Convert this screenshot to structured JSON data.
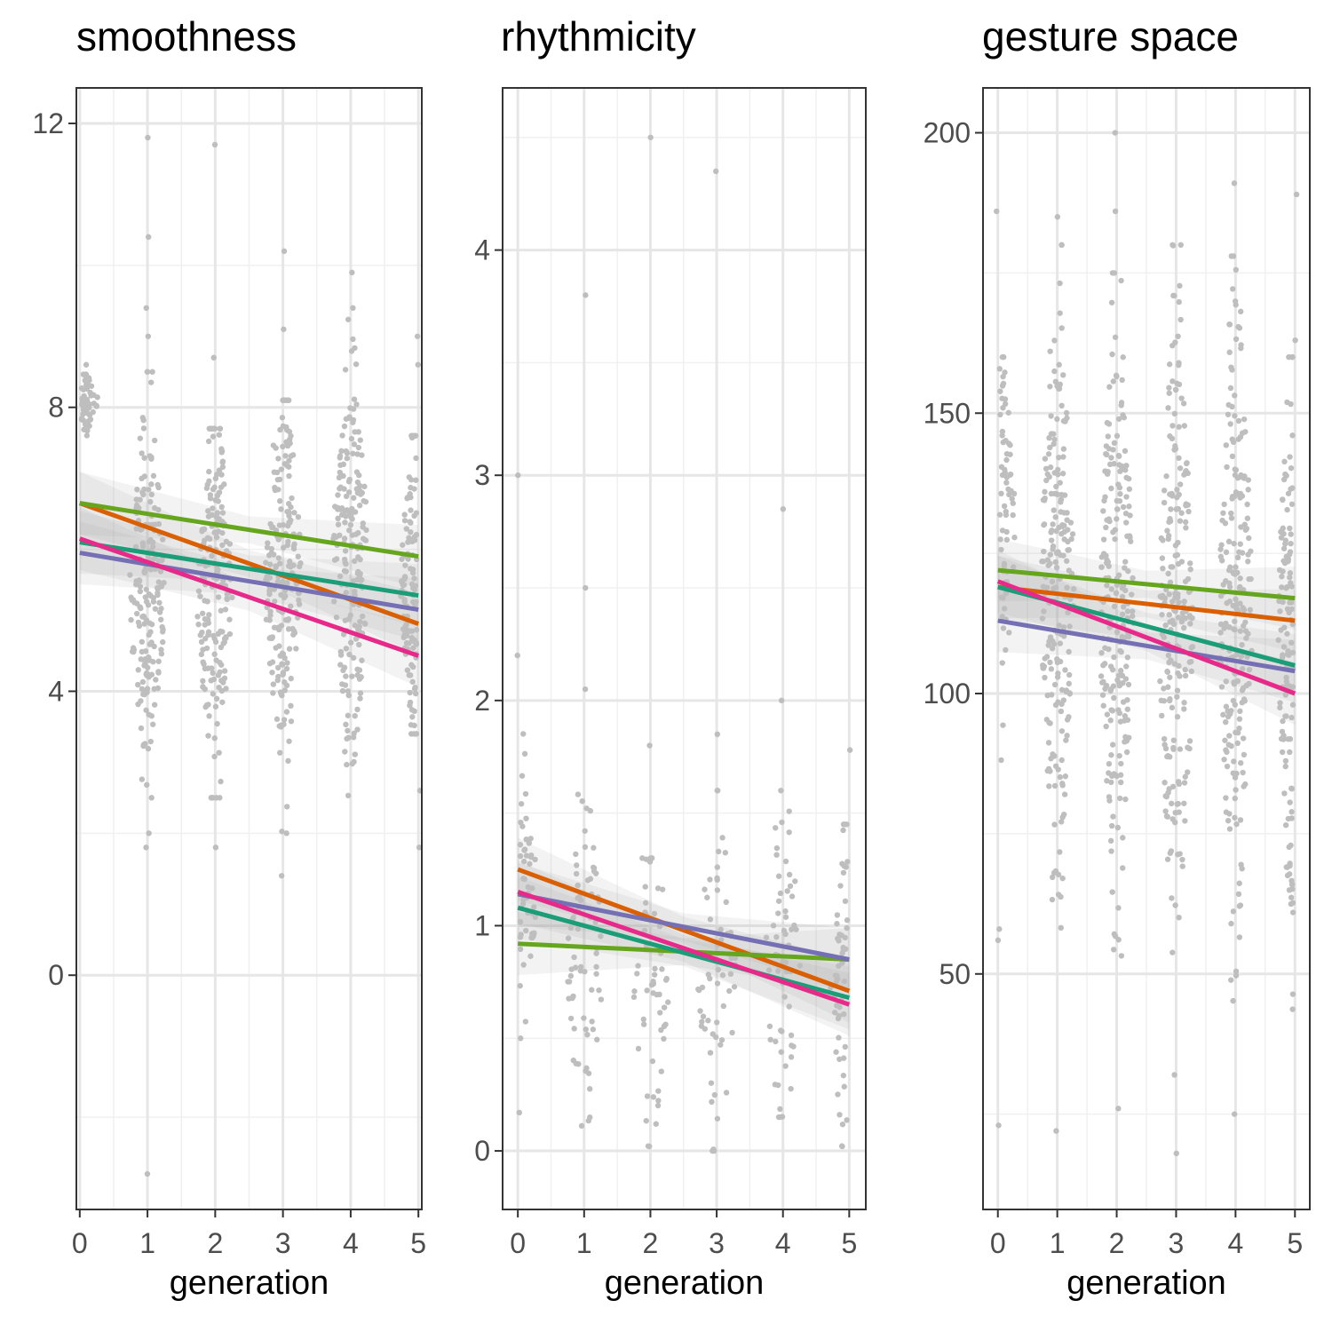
{
  "chart_data": [
    {
      "type": "scatter",
      "title": "smoothness",
      "xlabel": "generation",
      "ylabel": "",
      "xlim": [
        -0.05,
        5.05
      ],
      "ylim": [
        -3.3,
        12.5
      ],
      "x_ticks": [
        0,
        1,
        2,
        3,
        4,
        5
      ],
      "y_ticks": [
        0,
        4,
        8,
        12
      ],
      "grid": true,
      "points_color": "#bebebe",
      "point_groups": [
        {
          "x": 0,
          "center": 8.1,
          "sd": 0.25,
          "n": 60,
          "min": 7.6,
          "max": 8.6,
          "outliers": []
        },
        {
          "x": 1,
          "center": 5.4,
          "sd": 1.25,
          "n": 190,
          "min": 2.5,
          "max": 8.5,
          "outliers": [
            11.8,
            10.4,
            9.4,
            9.0,
            2.0,
            1.8,
            -2.8
          ]
        },
        {
          "x": 2,
          "center": 5.3,
          "sd": 1.2,
          "n": 190,
          "min": 2.5,
          "max": 7.7,
          "outliers": [
            11.7,
            8.7,
            1.8
          ]
        },
        {
          "x": 3,
          "center": 5.6,
          "sd": 1.35,
          "n": 200,
          "min": 2.0,
          "max": 8.1,
          "outliers": [
            10.2,
            9.1,
            1.4
          ]
        },
        {
          "x": 4,
          "center": 5.8,
          "sd": 1.35,
          "n": 200,
          "min": 1.6,
          "max": 9.4,
          "outliers": [
            9.9
          ]
        },
        {
          "x": 5,
          "center": 5.6,
          "sd": 1.1,
          "n": 120,
          "min": 3.4,
          "max": 7.6,
          "outliers": [
            9.0,
            8.6,
            2.6,
            1.8
          ]
        }
      ],
      "series": [
        {
          "color": "#d95f02",
          "x": [
            0,
            5
          ],
          "y": [
            6.65,
            4.95
          ]
        },
        {
          "color": "#66a61e",
          "x": [
            0,
            5
          ],
          "y": [
            6.65,
            5.9
          ]
        },
        {
          "color": "#1b9e77",
          "x": [
            0,
            5
          ],
          "y": [
            6.1,
            5.35
          ]
        },
        {
          "color": "#7570b3",
          "x": [
            0,
            5
          ],
          "y": [
            5.95,
            5.15
          ]
        },
        {
          "color": "#e7298a",
          "x": [
            0,
            5
          ],
          "y": [
            6.15,
            4.5
          ]
        }
      ]
    },
    {
      "type": "scatter",
      "title": "rhythmicity",
      "xlabel": "generation",
      "ylabel": "",
      "xlim": [
        -0.23,
        5.25
      ],
      "ylim": [
        -0.26,
        4.72
      ],
      "x_ticks": [
        0,
        1,
        2,
        3,
        4,
        5
      ],
      "y_ticks": [
        0,
        1,
        2,
        3,
        4
      ],
      "grid": true,
      "points_color": "#bebebe",
      "point_groups": [
        {
          "x": 0,
          "center": 1.15,
          "sd": 0.3,
          "n": 50,
          "min": 0.5,
          "max": 1.9,
          "outliers": [
            3.0,
            2.2,
            0.17
          ]
        },
        {
          "x": 1,
          "center": 0.85,
          "sd": 0.38,
          "n": 70,
          "min": 0.05,
          "max": 1.6,
          "outliers": [
            3.8,
            2.5,
            2.05
          ]
        },
        {
          "x": 2,
          "center": 0.8,
          "sd": 0.35,
          "n": 55,
          "min": 0.02,
          "max": 1.3,
          "outliers": [
            4.5,
            1.8
          ]
        },
        {
          "x": 3,
          "center": 0.8,
          "sd": 0.38,
          "n": 60,
          "min": 0.0,
          "max": 1.6,
          "outliers": [
            4.35,
            1.85
          ]
        },
        {
          "x": 4,
          "center": 0.85,
          "sd": 0.35,
          "n": 60,
          "min": 0.15,
          "max": 1.6,
          "outliers": [
            2.85,
            2.0
          ]
        },
        {
          "x": 5,
          "center": 0.7,
          "sd": 0.35,
          "n": 55,
          "min": 0.02,
          "max": 1.45,
          "outliers": [
            1.78
          ]
        }
      ],
      "series": [
        {
          "color": "#d95f02",
          "x": [
            0,
            5
          ],
          "y": [
            1.25,
            0.71
          ]
        },
        {
          "color": "#66a61e",
          "x": [
            0,
            5
          ],
          "y": [
            0.92,
            0.85
          ]
        },
        {
          "color": "#1b9e77",
          "x": [
            0,
            5
          ],
          "y": [
            1.08,
            0.68
          ]
        },
        {
          "color": "#7570b3",
          "x": [
            0,
            5
          ],
          "y": [
            1.14,
            0.85
          ]
        },
        {
          "color": "#e7298a",
          "x": [
            0,
            5
          ],
          "y": [
            1.15,
            0.65
          ]
        }
      ]
    },
    {
      "type": "scatter",
      "title": "gesture space",
      "xlabel": "generation",
      "ylabel": "",
      "xlim": [
        -0.25,
        5.25
      ],
      "ylim": [
        8,
        208
      ],
      "x_ticks": [
        0,
        1,
        2,
        3,
        4,
        5
      ],
      "y_ticks": [
        50,
        100,
        150,
        200
      ],
      "grid": true,
      "points_color": "#bebebe",
      "point_groups": [
        {
          "x": 0,
          "center": 130,
          "sd": 16,
          "n": 70,
          "min": 85,
          "max": 160,
          "outliers": [
            186,
            58,
            56,
            23
          ]
        },
        {
          "x": 1,
          "center": 118,
          "sd": 25,
          "n": 210,
          "min": 40,
          "max": 180,
          "outliers": [
            185,
            22
          ]
        },
        {
          "x": 2,
          "center": 115,
          "sd": 25,
          "n": 220,
          "min": 38,
          "max": 175,
          "outliers": [
            200,
            186,
            26
          ]
        },
        {
          "x": 3,
          "center": 112,
          "sd": 28,
          "n": 220,
          "min": 32,
          "max": 180,
          "outliers": [
            18
          ]
        },
        {
          "x": 4,
          "center": 115,
          "sd": 27,
          "n": 220,
          "min": 45,
          "max": 178,
          "outliers": [
            191,
            25
          ]
        },
        {
          "x": 5,
          "center": 110,
          "sd": 25,
          "n": 130,
          "min": 32,
          "max": 160,
          "outliers": [
            189,
            163
          ]
        }
      ],
      "series": [
        {
          "color": "#d95f02",
          "x": [
            0,
            5
          ],
          "y": [
            119,
            113
          ]
        },
        {
          "color": "#66a61e",
          "x": [
            0,
            5
          ],
          "y": [
            122,
            117
          ]
        },
        {
          "color": "#1b9e77",
          "x": [
            0,
            5
          ],
          "y": [
            119,
            105
          ]
        },
        {
          "color": "#7570b3",
          "x": [
            0,
            5
          ],
          "y": [
            113,
            104
          ]
        },
        {
          "color": "#e7298a",
          "x": [
            0,
            5
          ],
          "y": [
            120,
            100
          ]
        }
      ]
    }
  ]
}
